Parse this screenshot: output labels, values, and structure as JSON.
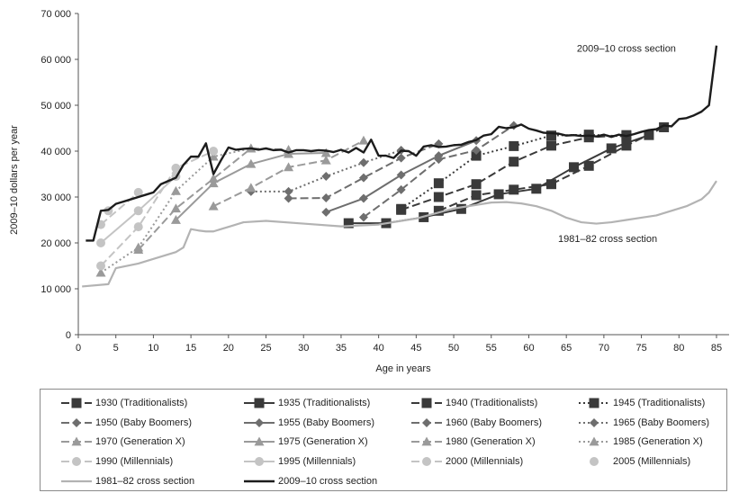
{
  "chart_data": {
    "type": "line",
    "xlabel": "Age in years",
    "ylabel": "2009–10 dollars per year",
    "xlim": [
      0,
      85
    ],
    "ylim": [
      0,
      70000
    ],
    "xticks": [
      0,
      5,
      10,
      15,
      20,
      25,
      30,
      35,
      40,
      45,
      50,
      55,
      60,
      65,
      70,
      75,
      80,
      85
    ],
    "yticks": [
      0,
      10000,
      20000,
      30000,
      40000,
      50000,
      60000,
      70000
    ],
    "ytick_labels": [
      "0",
      "10 000",
      "20 000",
      "30 000",
      "40 000",
      "50 000",
      "60 000",
      "70 000"
    ],
    "grid": false,
    "legend_position": "bottom",
    "annotations": [
      {
        "text": "2009–10 cross section",
        "x": 73,
        "y": 62500
      },
      {
        "text": "1981–82 cross section",
        "x": 70.5,
        "y": 21000
      }
    ],
    "series": [
      {
        "name": "1930 (Traditionalists)",
        "color": "#3a3a3a",
        "dash": "9,4",
        "marker": "square",
        "x": [
          48,
          53,
          58,
          63,
          68,
          73,
          78
        ],
        "y": [
          27000,
          30400,
          31600,
          32800,
          36800,
          41200,
          45200
        ]
      },
      {
        "name": "1935 (Traditionalists)",
        "color": "#3a3a3a",
        "dash": "",
        "marker": "square",
        "x": [
          36,
          41,
          46,
          51,
          56,
          61,
          66,
          71,
          76
        ],
        "y": [
          24300,
          24300,
          25600,
          27400,
          30600,
          31800,
          36500,
          40600,
          43500
        ]
      },
      {
        "name": "1940 (Traditionalists)",
        "color": "#3a3a3a",
        "dash": "9,4",
        "marker": "square",
        "x": [
          43,
          48,
          53,
          58,
          63,
          68,
          73
        ],
        "y": [
          27200,
          30000,
          32800,
          37700,
          41200,
          43000,
          43500
        ]
      },
      {
        "name": "1945 (Traditionalists)",
        "color": "#3a3a3a",
        "dash": "2,3",
        "marker": "square",
        "x": [
          43,
          48,
          53,
          58,
          63,
          68,
          73
        ],
        "y": [
          27400,
          33000,
          39000,
          41100,
          43400,
          43600,
          43200
        ]
      },
      {
        "name": "1950 (Baby Boomers)",
        "color": "#6e6e6e",
        "dash": "9,4",
        "marker": "diamond",
        "x": [
          38,
          43,
          48,
          53,
          58
        ],
        "y": [
          25600,
          31600,
          38200,
          40200,
          45600
        ]
      },
      {
        "name": "1955 (Baby Boomers)",
        "color": "#6e6e6e",
        "dash": "",
        "marker": "diamond",
        "x": [
          33,
          38,
          43,
          48,
          53
        ],
        "y": [
          26700,
          29700,
          34800,
          39000,
          42300
        ]
      },
      {
        "name": "1960 (Baby Boomers)",
        "color": "#6e6e6e",
        "dash": "9,4",
        "marker": "diamond",
        "x": [
          28,
          33,
          38,
          43,
          48
        ],
        "y": [
          29700,
          29800,
          34200,
          38500,
          41600
        ]
      },
      {
        "name": "1965 (Baby Boomers)",
        "color": "#6e6e6e",
        "dash": "2,3",
        "marker": "diamond",
        "x": [
          23,
          28,
          33,
          38,
          43
        ],
        "y": [
          31200,
          31200,
          34500,
          37500,
          40200
        ]
      },
      {
        "name": "1970 (Generation X)",
        "color": "#9a9a9a",
        "dash": "9,4",
        "marker": "triangle",
        "x": [
          18,
          23,
          28,
          33,
          38
        ],
        "y": [
          28000,
          32000,
          36500,
          38000,
          42300
        ]
      },
      {
        "name": "1975 (Generation X)",
        "color": "#9a9a9a",
        "dash": "",
        "marker": "triangle",
        "x": [
          13,
          18,
          23,
          28,
          33
        ],
        "y": [
          25000,
          33000,
          37200,
          39400,
          39600
        ]
      },
      {
        "name": "1980 (Generation X)",
        "color": "#9a9a9a",
        "dash": "9,4",
        "marker": "triangle",
        "x": [
          8,
          13,
          18,
          23,
          28
        ],
        "y": [
          18500,
          27500,
          34000,
          40600,
          40300
        ]
      },
      {
        "name": "1985 (Generation X)",
        "color": "#9a9a9a",
        "dash": "2,3",
        "marker": "triangle",
        "x": [
          3,
          8,
          13,
          18,
          23
        ],
        "y": [
          13500,
          19000,
          31300,
          38800,
          40600
        ]
      },
      {
        "name": "1990 (Millennials)",
        "color": "#c4c4c4",
        "dash": "9,4",
        "marker": "circle",
        "x": [
          3,
          8,
          13,
          18
        ],
        "y": [
          15000,
          23500,
          36300,
          40000
        ]
      },
      {
        "name": "1995 (Millennials)",
        "color": "#c4c4c4",
        "dash": "",
        "marker": "circle",
        "x": [
          3,
          8,
          13
        ],
        "y": [
          20000,
          27000,
          34500
        ]
      },
      {
        "name": "2000 (Millennials)",
        "color": "#c4c4c4",
        "dash": "9,4",
        "marker": "circle",
        "x": [
          3,
          8
        ],
        "y": [
          24000,
          31000
        ]
      },
      {
        "name": "2005 (Millennials)",
        "color": "#c4c4c4",
        "dash": "none",
        "marker": "circle",
        "x": [
          4
        ],
        "y": [
          27000
        ]
      },
      {
        "name": "1981–82 cross section",
        "color": "#b3b3b3",
        "dash": "",
        "marker": "none",
        "width": 2.2,
        "x": [
          0.5,
          4,
          5,
          8,
          10,
          13,
          14,
          15,
          16,
          17,
          18,
          19,
          20,
          22,
          25,
          30,
          35,
          40,
          45,
          50,
          55,
          57,
          59,
          61,
          63,
          65,
          67,
          69,
          71,
          73,
          75,
          77,
          79,
          81,
          83,
          84,
          85
        ],
        "y": [
          10500,
          11000,
          14500,
          15500,
          16500,
          18000,
          19000,
          23000,
          22700,
          22500,
          22500,
          23000,
          23500,
          24500,
          24800,
          24200,
          23600,
          24000,
          25300,
          27500,
          28800,
          28900,
          28600,
          28000,
          27000,
          25500,
          24500,
          24200,
          24500,
          25000,
          25500,
          26000,
          27000,
          28000,
          29500,
          31000,
          33500
        ]
      },
      {
        "name": "2009–10 cross section",
        "color": "#1c1c1c",
        "dash": "",
        "marker": "none",
        "width": 2.4,
        "x": [
          1,
          2,
          3,
          4,
          5,
          6,
          7,
          8,
          9,
          10,
          11,
          12,
          13,
          14,
          15,
          16,
          17,
          18,
          19,
          20,
          21,
          22,
          23,
          24,
          25,
          26,
          27,
          28,
          29,
          30,
          31,
          32,
          33,
          34,
          35,
          36,
          37,
          38,
          39,
          40,
          41,
          42,
          43,
          44,
          45,
          46,
          47,
          48,
          49,
          50,
          51,
          52,
          53,
          54,
          55,
          56,
          57,
          58,
          59,
          60,
          61,
          62,
          63,
          64,
          65,
          66,
          67,
          68,
          69,
          70,
          71,
          72,
          73,
          74,
          75,
          76,
          77,
          78,
          79,
          80,
          81,
          82,
          83,
          84,
          85
        ],
        "y": [
          20500,
          20500,
          27000,
          27200,
          28500,
          29000,
          29500,
          30000,
          30500,
          31000,
          32800,
          33500,
          34200,
          37000,
          38800,
          38800,
          41700,
          35000,
          38000,
          40800,
          40300,
          40500,
          40600,
          40300,
          40600,
          40200,
          40300,
          39700,
          40200,
          40200,
          40000,
          40200,
          40100,
          39800,
          40300,
          39700,
          40700,
          39700,
          42500,
          39000,
          39000,
          38500,
          40100,
          40000,
          39000,
          41000,
          41300,
          40900,
          41000,
          41300,
          41400,
          42000,
          42400,
          43400,
          43700,
          45300,
          45000,
          45200,
          45800,
          44900,
          44500,
          44000,
          43900,
          43800,
          43400,
          43500,
          43300,
          43400,
          43200,
          43600,
          43100,
          43600,
          43300,
          43700,
          44200,
          44600,
          44800,
          45600,
          45400,
          47000,
          47200,
          47800,
          48600,
          50000,
          63000
        ]
      }
    ]
  }
}
